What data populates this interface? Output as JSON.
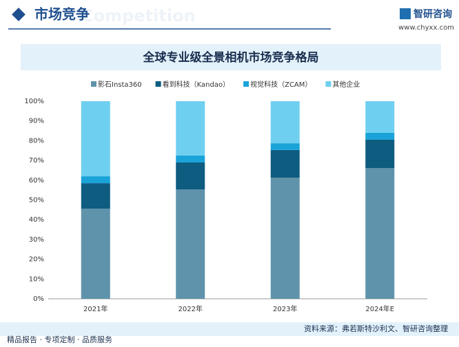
{
  "header": {
    "title": "市场竞争",
    "subtitle": "Competition",
    "logo": "智研咨询",
    "url": "www.chyxx.com"
  },
  "chart_data": {
    "type": "stacked-bar",
    "title": "全球专业级全景相机市场竞争格局",
    "categories": [
      "2021年",
      "2022年",
      "2023年",
      "2024年E"
    ],
    "series": [
      {
        "name": "影石Insta360",
        "color": "#5f93ab",
        "values": [
          45.6,
          55.4,
          61.3,
          66.2
        ]
      },
      {
        "name": "看到科技（Kandao）",
        "color": "#0e5c80",
        "values": [
          12.9,
          13.6,
          14.0,
          14.3
        ]
      },
      {
        "name": "视觉科技（ZCAM）",
        "color": "#1aa3d9",
        "values": [
          3.5,
          3.5,
          3.4,
          3.5
        ]
      },
      {
        "name": "其他企业",
        "color": "#6fcff0",
        "values": [
          38.0,
          27.5,
          21.3,
          16.0
        ]
      }
    ],
    "ylim": [
      0,
      100
    ],
    "yticks": [
      {
        "value": 0,
        "label": "0%"
      },
      {
        "value": 10,
        "label": "10%"
      },
      {
        "value": 20,
        "label": "20%"
      },
      {
        "value": 30,
        "label": "30%"
      },
      {
        "value": 40,
        "label": "40%"
      },
      {
        "value": 50,
        "label": "50%"
      },
      {
        "value": 60,
        "label": "60%"
      },
      {
        "value": 70,
        "label": "70%"
      },
      {
        "value": 80,
        "label": "80%"
      },
      {
        "value": 90,
        "label": "90%"
      },
      {
        "value": 100,
        "label": "100%"
      }
    ],
    "source": "资料来源：弗若斯特沙利文、智研咨询整理"
  },
  "footer": {
    "slogan": "精品报告 · 专项定制 · 品质服务"
  }
}
